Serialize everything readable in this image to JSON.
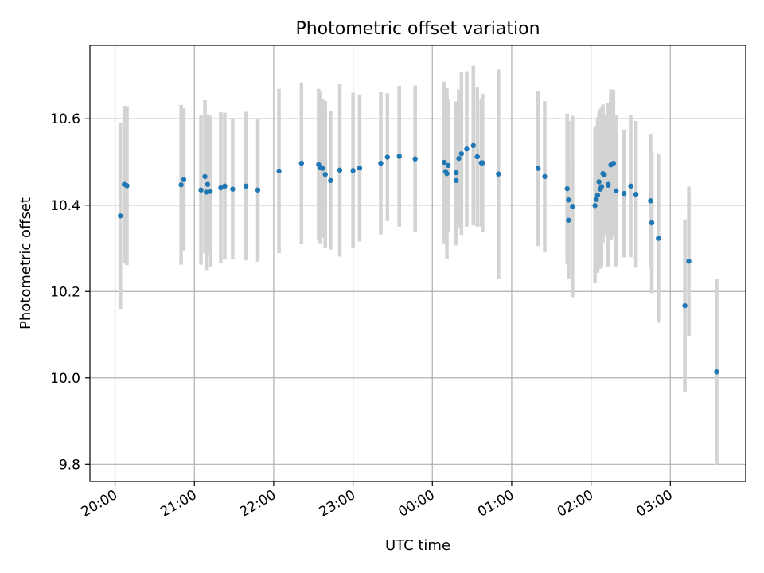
{
  "chart_data": {
    "type": "scatter",
    "title": "Photometric offset variation",
    "xlabel": "UTC time",
    "ylabel": "Photometric offset",
    "grid": true,
    "legend": "none",
    "x_tick_labels": [
      "20:00",
      "21:00",
      "22:00",
      "23:00",
      "00:00",
      "01:00",
      "02:00",
      "03:00"
    ],
    "y_ticks": [
      9.8,
      10.0,
      10.2,
      10.4,
      10.6
    ],
    "y_tick_labels": [
      "9.8",
      "10.0",
      "10.2",
      "10.4",
      "10.6"
    ],
    "xlim": [
      "19:41",
      "03:57"
    ],
    "ylim": [
      9.76,
      10.77
    ],
    "point_color": "#1f77b4",
    "errorbar_color": "#d3d3d3",
    "series": [
      {
        "x": [
          "20:04",
          "20:07",
          "20:09",
          "20:50",
          "20:52",
          "21:05",
          "21:08",
          "21:09",
          "21:10",
          "21:12",
          "21:20",
          "21:23",
          "21:29",
          "21:39",
          "21:48",
          "22:04",
          "22:21",
          "22:34",
          "22:35",
          "22:37",
          "22:39",
          "22:43",
          "22:50",
          "23:00",
          "23:05",
          "23:21",
          "23:26",
          "23:35",
          "23:47",
          "00:09",
          "00:10",
          "00:11",
          "00:12",
          "00:18",
          "00:18",
          "00:20",
          "00:22",
          "00:26",
          "00:31",
          "00:34",
          "00:37",
          "00:38",
          "00:50",
          "01:20",
          "01:25",
          "01:42",
          "01:43",
          "01:43",
          "01:46",
          "02:03",
          "02:04",
          "02:05",
          "02:06",
          "02:07",
          "02:08",
          "02:09",
          "02:10",
          "02:13",
          "02:13",
          "02:15",
          "02:17",
          "02:19",
          "02:25",
          "02:30",
          "02:34",
          "02:45",
          "02:46",
          "02:51",
          "03:11",
          "03:14",
          "03:35"
        ],
        "y": [
          10.375,
          10.448,
          10.445,
          10.447,
          10.459,
          10.435,
          10.466,
          10.43,
          10.448,
          10.432,
          10.44,
          10.444,
          10.437,
          10.444,
          10.435,
          10.479,
          10.497,
          10.494,
          10.488,
          10.485,
          10.471,
          10.457,
          10.481,
          10.48,
          10.486,
          10.497,
          10.511,
          10.513,
          10.507,
          10.499,
          10.478,
          10.473,
          10.492,
          10.457,
          10.475,
          10.508,
          10.519,
          10.53,
          10.538,
          10.512,
          10.498,
          10.498,
          10.472,
          10.485,
          10.466,
          10.438,
          10.412,
          10.365,
          10.397,
          10.399,
          10.413,
          10.423,
          10.454,
          10.437,
          10.443,
          10.473,
          10.47,
          10.446,
          10.448,
          10.493,
          10.497,
          10.433,
          10.427,
          10.444,
          10.425,
          10.41,
          10.359,
          10.323,
          10.167,
          10.27,
          10.014
        ],
        "yerr": [
          0.215,
          0.182,
          0.184,
          0.185,
          0.165,
          0.173,
          0.177,
          0.18,
          0.162,
          0.175,
          0.175,
          0.17,
          0.163,
          0.172,
          0.166,
          0.19,
          0.187,
          0.175,
          0.176,
          0.16,
          0.17,
          0.16,
          0.2,
          0.18,
          0.17,
          0.165,
          0.148,
          0.163,
          0.17,
          0.187,
          0.168,
          0.198,
          0.153,
          0.15,
          0.165,
          0.16,
          0.188,
          0.18,
          0.185,
          0.162,
          0.148,
          0.16,
          0.242,
          0.18,
          0.175,
          0.174,
          0.183,
          0.135,
          0.21,
          0.18,
          0.17,
          0.18,
          0.16,
          0.185,
          0.185,
          0.16,
          0.14,
          0.19,
          0.16,
          0.175,
          0.17,
          0.175,
          0.148,
          0.165,
          0.17,
          0.155,
          0.163,
          0.195,
          0.2,
          0.173,
          0.215
        ]
      }
    ]
  }
}
